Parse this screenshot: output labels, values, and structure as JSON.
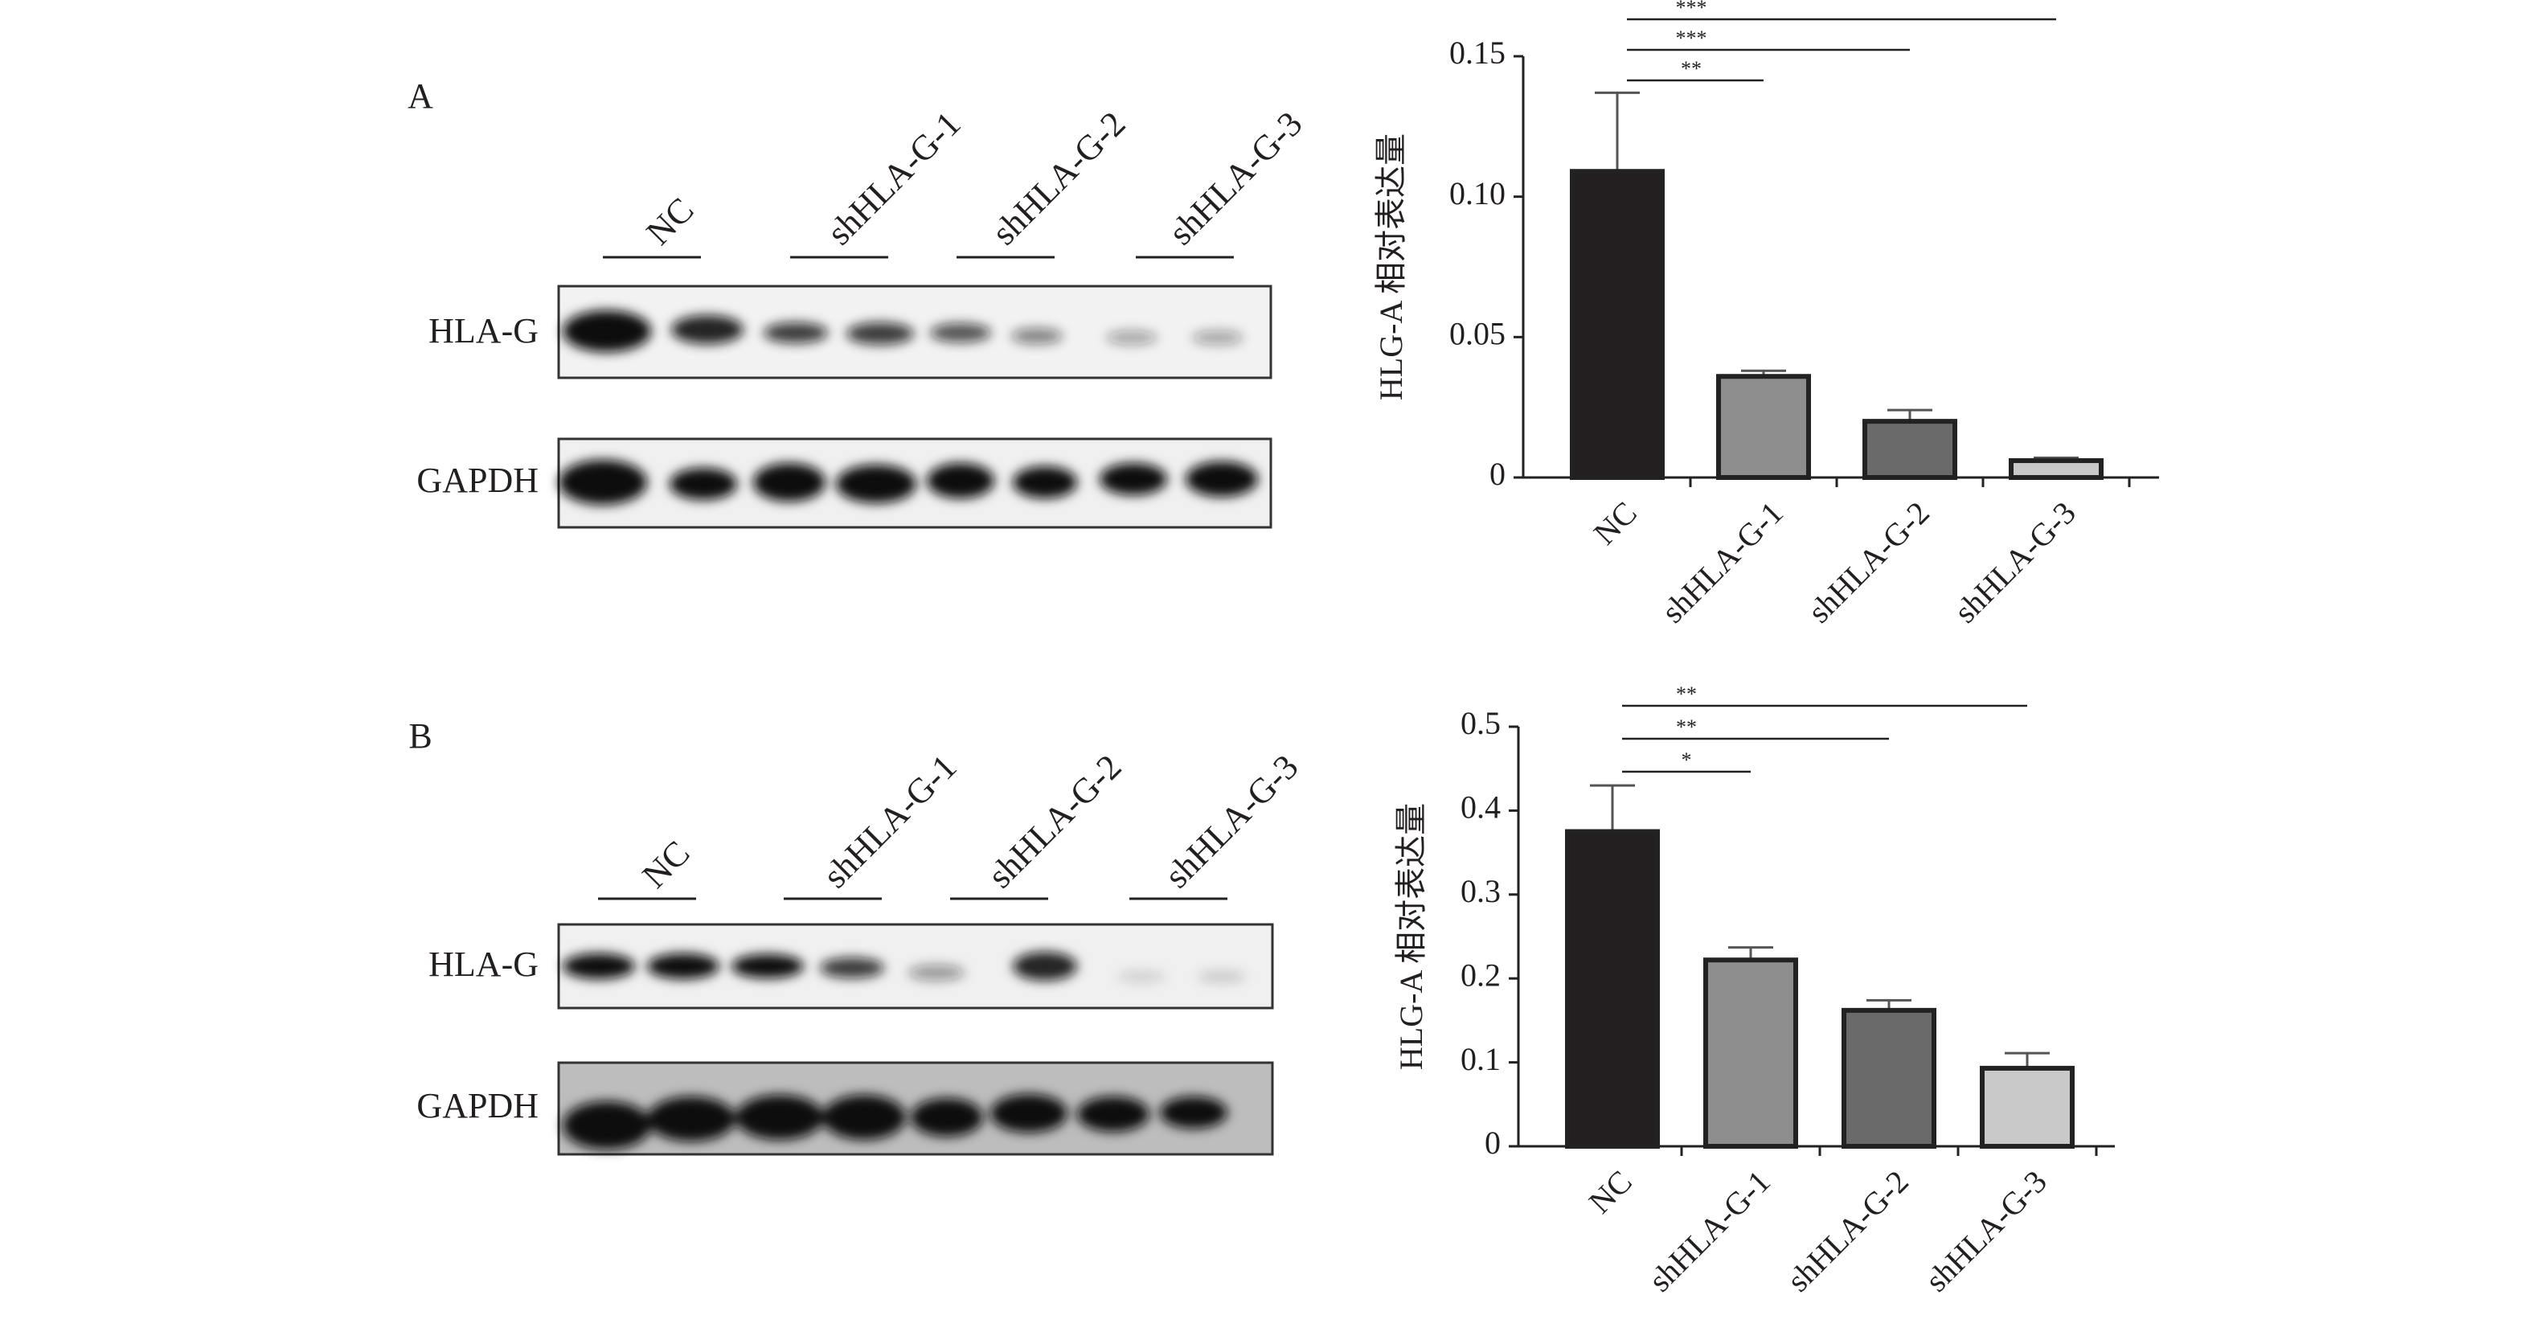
{
  "panels": [
    {
      "label": "A",
      "lanes": [
        "NC",
        "shHLA-G-1",
        "shHLA-G-2",
        "shHLA-G-3"
      ],
      "rows": [
        "HLA-G",
        "GAPDH"
      ]
    },
    {
      "label": "B",
      "lanes": [
        "NC",
        "shHLA-G-1",
        "shHLA-G-2",
        "shHLA-G-3"
      ],
      "rows": [
        "HLA-G",
        "GAPDH"
      ]
    }
  ],
  "chart_data": [
    {
      "type": "bar",
      "y_label": "HLG-A 相对表达量",
      "categories": [
        "NC",
        "shHLA-G-1",
        "shHLA-G-2",
        "shHLA-G-3"
      ],
      "values": [
        0.109,
        0.036,
        0.02,
        0.006
      ],
      "errors": [
        0.028,
        0.002,
        0.004,
        0.001
      ],
      "colors": [
        "#231f20",
        "#8e8e8e",
        "#6a6a6a",
        "#c9c9c9"
      ],
      "ylim": [
        0,
        0.15
      ],
      "yticks": [
        0,
        0.05,
        {
          "value": 0.1,
          "label": "0.10"
        },
        0.15
      ],
      "annotations": [
        "**",
        "***",
        "***"
      ]
    },
    {
      "type": "bar",
      "y_label": "HLG-A 相对表达量",
      "categories": [
        "NC",
        "shHLA-G-1",
        "shHLA-G-2",
        "shHLA-G-3"
      ],
      "values": [
        0.375,
        0.222,
        0.162,
        0.093
      ],
      "errors": [
        0.055,
        0.015,
        0.012,
        0.018
      ],
      "colors": [
        "#231f20",
        "#8e8e8e",
        "#6a6a6a",
        "#c9c9c9"
      ],
      "ylim": [
        0,
        0.5
      ],
      "yticks": [
        0,
        0.1,
        0.2,
        0.3,
        0.4,
        0.5
      ],
      "annotations": [
        "*",
        "**",
        "**"
      ]
    }
  ]
}
